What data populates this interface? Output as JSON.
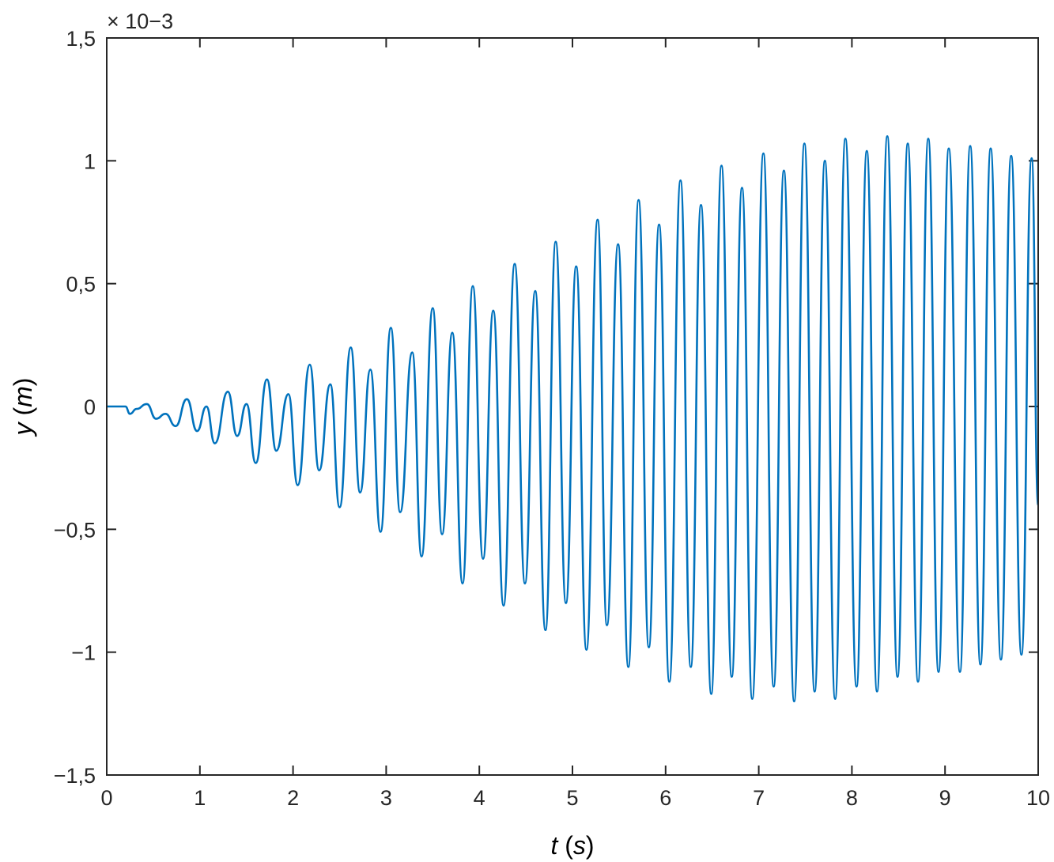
{
  "chart_data": {
    "type": "line",
    "title": "",
    "xlabel": {
      "var": "t",
      "unit": "s"
    },
    "ylabel": {
      "var": "y",
      "unit": "m"
    },
    "xlim": [
      0,
      10
    ],
    "ylim": [
      -1.5,
      1.5
    ],
    "y_exponent": "× 10−3",
    "xticks": [
      0,
      1,
      2,
      3,
      4,
      5,
      6,
      7,
      8,
      9,
      10
    ],
    "xtick_labels": [
      "0",
      "1",
      "2",
      "3",
      "4",
      "5",
      "6",
      "7",
      "8",
      "9",
      "10"
    ],
    "yticks": [
      -1.5,
      -1,
      -0.5,
      0,
      0.5,
      1,
      1.5
    ],
    "ytick_labels": [
      "−1,5",
      "−1",
      "−0,5",
      "0",
      "0,5",
      "1",
      "1,5"
    ],
    "grid": false,
    "legend": "none",
    "series": [
      {
        "color": "#0072BD",
        "x": [
          0,
          0.2,
          0.25,
          0.32,
          0.43,
          0.53,
          0.63,
          0.74,
          0.86,
          0.97,
          1.07,
          1.16,
          1.3,
          1.4,
          1.5,
          1.6,
          1.72,
          1.82,
          1.95,
          2.05,
          2.18,
          2.28,
          2.4,
          2.5,
          2.62,
          2.72,
          2.83,
          2.94,
          3.05,
          3.15,
          3.28,
          3.38,
          3.5,
          3.6,
          3.71,
          3.82,
          3.93,
          4.04,
          4.15,
          4.26,
          4.38,
          4.49,
          4.6,
          4.71,
          4.82,
          4.93,
          5.04,
          5.15,
          5.27,
          5.37,
          5.49,
          5.6,
          5.71,
          5.82,
          5.93,
          6.04,
          6.16,
          6.27,
          6.38,
          6.49,
          6.6,
          6.71,
          6.82,
          6.93,
          7.05,
          7.16,
          7.27,
          7.38,
          7.49,
          7.6,
          7.71,
          7.82,
          7.93,
          8.05,
          8.16,
          8.27,
          8.38,
          8.49,
          8.6,
          8.71,
          8.82,
          8.93,
          9.04,
          9.16,
          9.27,
          9.38,
          9.49,
          9.6,
          9.71,
          9.82,
          9.93,
          10
        ],
        "y": [
          0,
          0,
          -0.03,
          -0.01,
          0.01,
          -0.05,
          -0.03,
          -0.08,
          0.03,
          -0.1,
          0,
          -0.15,
          0.06,
          -0.12,
          0.01,
          -0.23,
          0.11,
          -0.18,
          0.05,
          -0.32,
          0.17,
          -0.26,
          0.09,
          -0.41,
          0.24,
          -0.35,
          0.15,
          -0.51,
          0.32,
          -0.43,
          0.22,
          -0.61,
          0.4,
          -0.52,
          0.3,
          -0.72,
          0.49,
          -0.62,
          0.39,
          -0.81,
          0.58,
          -0.72,
          0.47,
          -0.91,
          0.67,
          -0.8,
          0.57,
          -0.99,
          0.76,
          -0.89,
          0.66,
          -1.06,
          0.84,
          -0.98,
          0.74,
          -1.12,
          0.92,
          -1.06,
          0.82,
          -1.17,
          0.98,
          -1.1,
          0.89,
          -1.19,
          1.03,
          -1.14,
          0.96,
          -1.2,
          1.07,
          -1.16,
          1.0,
          -1.19,
          1.09,
          -1.14,
          1.04,
          -1.16,
          1.1,
          -1.1,
          1.07,
          -1.12,
          1.09,
          -1.08,
          1.05,
          -1.08,
          1.06,
          -1.05,
          1.05,
          -1.03,
          1.02,
          -1.01,
          1.01,
          -0.4
        ]
      }
    ]
  }
}
